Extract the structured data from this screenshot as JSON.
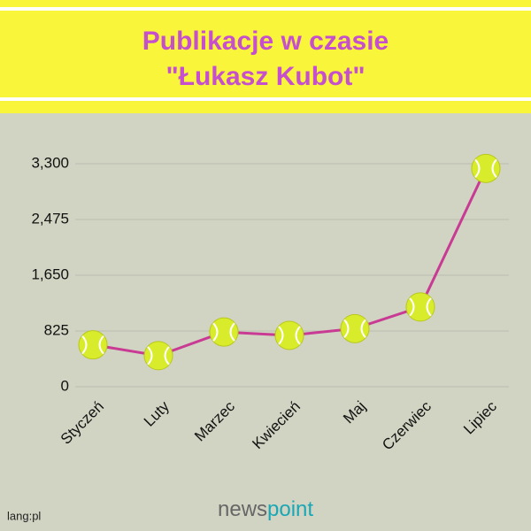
{
  "chart_data": {
    "type": "line",
    "title": "Publikacje w czasie",
    "subtitle": "\"Łukasz Kubot\"",
    "categories": [
      "Styczeń",
      "Luty",
      "Marzec",
      "Kwiecień",
      "Maj",
      "Czerwiec",
      "Lipiec"
    ],
    "series": [
      {
        "name": "Publikacje",
        "color": "#c83a93",
        "values": [
          620,
          460,
          810,
          760,
          860,
          1180,
          3230
        ]
      }
    ],
    "ylim": [
      0,
      3300
    ],
    "yticks": [
      0,
      825,
      {
        "value": 1650,
        "label": "1,650"
      },
      {
        "value": 2475,
        "label": "2,475"
      },
      {
        "value": 3300,
        "label": "3,300"
      }
    ],
    "grid": true,
    "source": "lang:pl",
    "brand": [
      "news",
      "point"
    ]
  }
}
